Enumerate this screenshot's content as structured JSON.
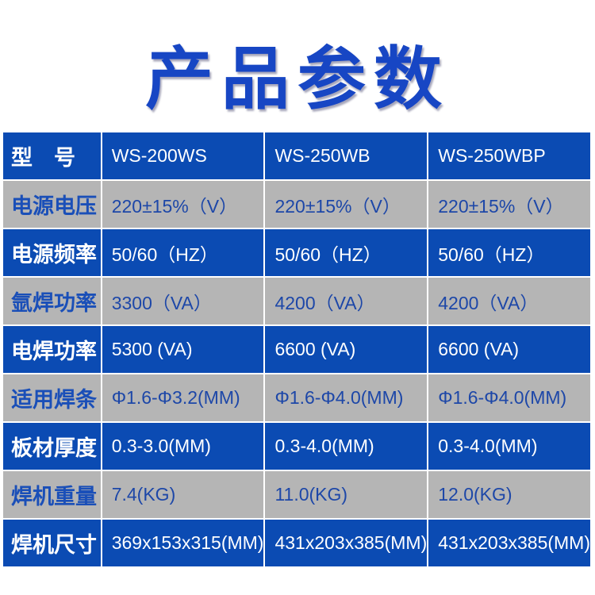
{
  "title": "产品参数",
  "colors": {
    "blue_row": "#0b4bb3",
    "gray_row": "#b5b5b5",
    "title": "#1746c4"
  },
  "rows": [
    {
      "label": "型　号",
      "values": [
        "WS-200WS",
        "WS-250WB",
        "WS-250WBP"
      ]
    },
    {
      "label": "电源电压",
      "values": [
        "220±15%（V）",
        "220±15%（V）",
        "220±15%（V）"
      ]
    },
    {
      "label": "电源频率",
      "values": [
        "50/60（HZ）",
        "50/60（HZ）",
        "50/60（HZ）"
      ]
    },
    {
      "label": "氩焊功率",
      "values": [
        "3300（VA）",
        "4200（VA）",
        "4200（VA）"
      ]
    },
    {
      "label": "电焊功率",
      "values": [
        "5300 (VA)",
        "6600 (VA)",
        "6600 (VA)"
      ]
    },
    {
      "label": "适用焊条",
      "values": [
        "Φ1.6-Φ3.2(MM)",
        "Φ1.6-Φ4.0(MM)",
        "Φ1.6-Φ4.0(MM)"
      ]
    },
    {
      "label": "板材厚度",
      "values": [
        "0.3-3.0(MM)",
        "0.3-4.0(MM)",
        "0.3-4.0(MM)"
      ]
    },
    {
      "label": "焊机重量",
      "values": [
        "7.4(KG)",
        "11.0(KG)",
        "12.0(KG)"
      ]
    },
    {
      "label": "焊机尺寸",
      "values": [
        "369x153x315(MM)",
        "431x203x385(MM)",
        "431x203x385(MM)"
      ]
    }
  ]
}
